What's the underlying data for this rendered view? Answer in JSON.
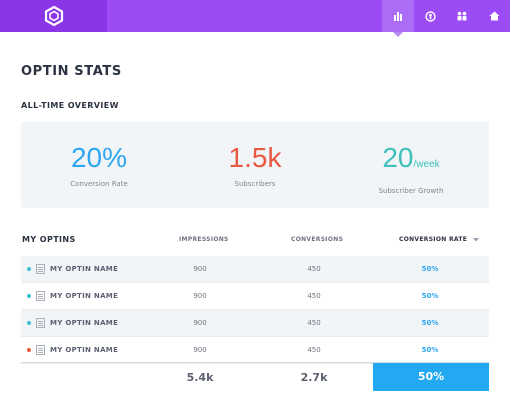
{
  "nav": {
    "items": [
      {
        "name": "stats",
        "icon": "bar-chart-icon",
        "active": true
      },
      {
        "name": "profile",
        "icon": "circle-user-icon",
        "active": false
      },
      {
        "name": "users",
        "icon": "users-icon",
        "active": false
      },
      {
        "name": "home",
        "icon": "home-icon",
        "active": false
      }
    ]
  },
  "colors": {
    "topbar": "#9b4cf5",
    "logo_bg": "#8a35e6",
    "conversion_blue": "#2ea7f0",
    "subscribers_red": "#e8573f",
    "growth_teal": "#3cc0b9"
  },
  "page_title": "OPTIN STATS",
  "overview": {
    "title": "ALL-TIME OVERVIEW",
    "conversion": {
      "value": "20%",
      "label": "Conversion Rate"
    },
    "subscribers": {
      "value": "1.5k",
      "label": "Subscribers"
    },
    "growth": {
      "value": "20",
      "unit": "/week",
      "label": "Subscriber Growth"
    }
  },
  "table": {
    "title": "MY OPTINS",
    "col_impressions": "IMPRESSIONS",
    "col_conversions": "CONVERSIONS",
    "col_rate": "CONVERSION RATE",
    "rows": [
      {
        "name": "MY OPTIN NAME",
        "impressions": "900",
        "conversions": "450",
        "rate": "50%",
        "status_color": "#3cc0d0"
      },
      {
        "name": "MY OPTIN NAME",
        "impressions": "900",
        "conversions": "450",
        "rate": "50%",
        "status_color": "#3cc0d0"
      },
      {
        "name": "MY OPTIN NAME",
        "impressions": "900",
        "conversions": "450",
        "rate": "50%",
        "status_color": "#3cc0d0"
      },
      {
        "name": "MY OPTIN NAME",
        "impressions": "900",
        "conversions": "450",
        "rate": "50%",
        "status_color": "#e8573f"
      }
    ],
    "totals": {
      "impressions": "5.4k",
      "conversions": "2.7k",
      "rate": "50%"
    }
  }
}
